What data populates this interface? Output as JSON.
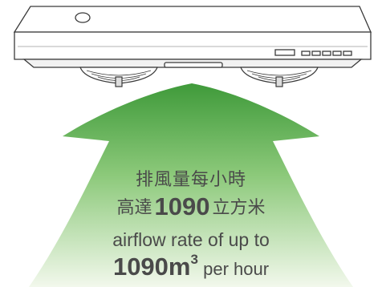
{
  "caption": {
    "chinese_line1": "排風量每小時",
    "chinese_line2_prefix": "高達",
    "chinese_line2_number": "1090",
    "chinese_line2_suffix": "立方米",
    "english_line1": "airflow rate of up to",
    "english_line2_number": "1090",
    "english_line2_unit": "m",
    "english_line2_exponent": "3",
    "english_line2_suffix": "per hour"
  },
  "colors": {
    "arrow_top": "#3f9a3a",
    "arrow_bottom": "#f2f8ec",
    "hood_stroke": "#3a3a3a",
    "text": "#4a4a4a"
  },
  "icons": [
    "range-hood",
    "exhaust-fan",
    "airflow-arrow"
  ]
}
